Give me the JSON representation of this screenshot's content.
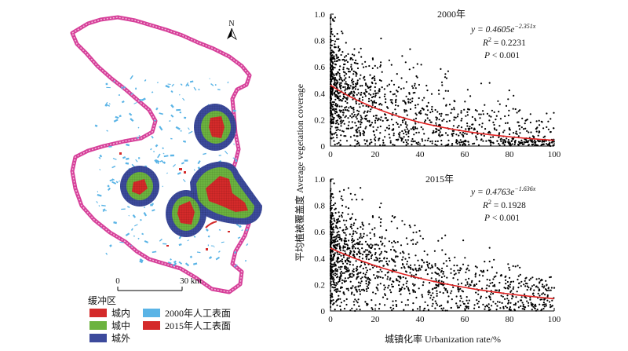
{
  "map": {
    "north_label": "N",
    "scale_start": "0",
    "scale_end": "30 km",
    "legend_title": "缓冲区",
    "legend_items": [
      {
        "label": "城内",
        "color": "#d42a2a"
      },
      {
        "label": "城中",
        "color": "#6cb33f"
      },
      {
        "label": "城外",
        "color": "#3c4a9c"
      },
      {
        "label": "2000年人工表面",
        "color": "#5ab4e6"
      },
      {
        "label": "2015年人工表面",
        "color": "#d42a2a"
      }
    ],
    "boundary_color": "#d6409a"
  },
  "shared_ylabel": "平均植被覆盖度 Average vegetation coverage",
  "shared_xlabel": "城镇化率 Urbanization rate/%",
  "chart_data": [
    {
      "type": "scatter",
      "title": "2000年",
      "equation": "y = 0.4605e",
      "exponent": "−2.351x",
      "r2_label": "R",
      "r2_value": " = 0.2231",
      "p_label": "P",
      "p_value": " < 0.001",
      "fit": {
        "a": 0.4605,
        "b": -2.351
      },
      "xlim": [
        0,
        100
      ],
      "ylim": [
        0,
        1.0
      ],
      "xticks": [
        "0",
        "20",
        "40",
        "60",
        "80",
        "100"
      ],
      "yticks": [
        "0",
        "0.2",
        "0.4",
        "0.6",
        "0.8",
        "1.0"
      ],
      "point_color": "#000000",
      "fit_color": "#e02020"
    },
    {
      "type": "scatter",
      "title": "2015年",
      "equation": "y = 0.4763e",
      "exponent": "−1.636x",
      "r2_label": "R",
      "r2_value": " = 0.1928",
      "p_label": "P",
      "p_value": " < 0.001",
      "fit": {
        "a": 0.4763,
        "b": -1.636
      },
      "xlim": [
        0,
        100
      ],
      "ylim": [
        0,
        1.0
      ],
      "xticks": [
        "0",
        "20",
        "40",
        "60",
        "80",
        "100"
      ],
      "yticks": [
        "0",
        "0.2",
        "0.4",
        "0.6",
        "0.8",
        "1.0"
      ],
      "point_color": "#000000",
      "fit_color": "#e02020"
    }
  ]
}
